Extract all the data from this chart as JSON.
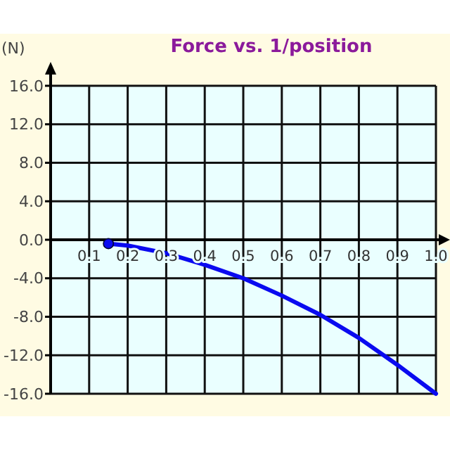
{
  "chart_data": {
    "type": "line",
    "title": "Force vs. 1/position",
    "ylabel": "(N)",
    "xlim": [
      0,
      1.0
    ],
    "ylim": [
      -16,
      16
    ],
    "xticks": [
      {
        "value": 0,
        "label": null
      },
      {
        "value": 0.1,
        "label": "0.1"
      },
      {
        "value": 0.2,
        "label": "0.2"
      },
      {
        "value": 0.3,
        "label": "0.3"
      },
      {
        "value": 0.4,
        "label": "0.4"
      },
      {
        "value": 0.5,
        "label": "0.5"
      },
      {
        "value": 0.6,
        "label": "0.6"
      },
      {
        "value": 0.7,
        "label": "0.7"
      },
      {
        "value": 0.8,
        "label": "0.8"
      },
      {
        "value": 0.9,
        "label": "0.9"
      },
      {
        "value": 1.0,
        "label": "1.0"
      }
    ],
    "yticks": [
      {
        "value": -16,
        "label": "-16.0"
      },
      {
        "value": -12,
        "label": "-12.0"
      },
      {
        "value": -8,
        "label": "-8.0"
      },
      {
        "value": -4,
        "label": "-4.0"
      },
      {
        "value": 0,
        "label": "0.0"
      },
      {
        "value": 4,
        "label": "4.0"
      },
      {
        "value": 8,
        "label": "8.0"
      },
      {
        "value": 12,
        "label": "12.0"
      },
      {
        "value": 16,
        "label": "16.0"
      }
    ],
    "grid": true,
    "marker": "none",
    "line_style": "solid",
    "series": [
      {
        "color": "#0a0af0",
        "x": [
          0.15,
          0.2,
          0.3,
          0.4,
          0.5,
          0.6,
          0.7,
          0.8,
          0.9,
          1.0
        ],
        "values": [
          -0.4,
          -0.6,
          -1.4,
          -2.6,
          -4.0,
          -5.8,
          -7.8,
          -10.2,
          -13.0,
          -16.0
        ]
      },
      {
        "type": "scatter",
        "color": "#0a0af0",
        "marker": "circle",
        "x": [
          0.15
        ],
        "values": [
          -0.4
        ]
      }
    ]
  }
}
